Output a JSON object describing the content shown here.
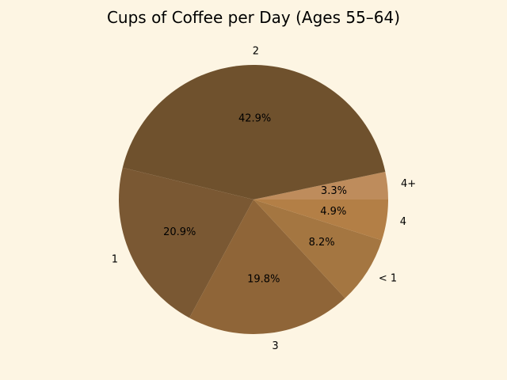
{
  "chart_data": {
    "type": "pie",
    "title": "Cups of Coffee per Day (Ages 55–64)",
    "start_angle": 0,
    "direction": "counterclockwise",
    "slices": [
      {
        "label": "4+",
        "value": 3.3,
        "pct_label": "3.3%",
        "color": "#be8c5c"
      },
      {
        "label": "2",
        "value": 42.9,
        "pct_label": "42.9%",
        "color": "#6f512d"
      },
      {
        "label": "1",
        "value": 20.9,
        "pct_label": "20.9%",
        "color": "#7a5833"
      },
      {
        "label": "3",
        "value": 19.8,
        "pct_label": "19.8%",
        "color": "#8f6538"
      },
      {
        "label": "< 1",
        "value": 8.2,
        "pct_label": "8.2%",
        "color": "#a47641"
      },
      {
        "label": "4",
        "value": 4.9,
        "pct_label": "4.9%",
        "color": "#b37f46"
      }
    ]
  },
  "colors": {
    "background": "#fdf5e3"
  }
}
